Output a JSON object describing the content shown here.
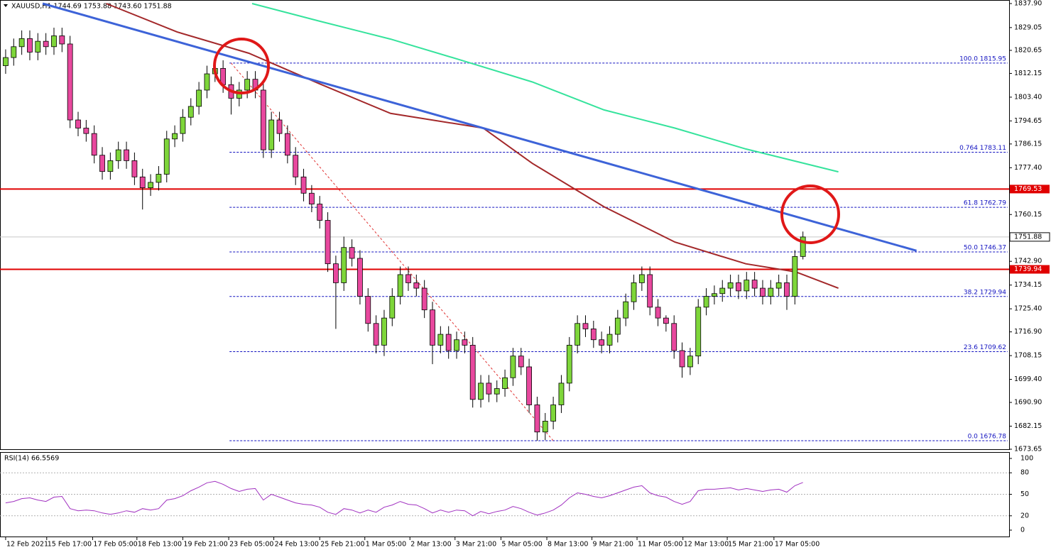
{
  "chart_data": {
    "type": "candlestick",
    "title": "XAUUSD,H1  1744.69 1753.88 1743.60 1751.88",
    "up_color": "#7ed63a",
    "down_color": "#e8489e",
    "open": [
      1815,
      1818,
      1822,
      1825,
      1820,
      1824,
      1822,
      1826,
      1823,
      1795,
      1792,
      1790,
      1782,
      1776,
      1780,
      1784,
      1780,
      1774,
      1770,
      1772,
      1775,
      1788,
      1790,
      1796,
      1800,
      1806,
      1812,
      1814,
      1808,
      1803,
      1806,
      1810,
      1806,
      1784,
      1795,
      1790,
      1782,
      1774,
      1768,
      1764,
      1758,
      1742,
      1735,
      1748,
      1744,
      1730,
      1720,
      1712,
      1722,
      1730,
      1738,
      1735,
      1733,
      1725,
      1712,
      1716,
      1710,
      1714,
      1712,
      1692,
      1698,
      1694,
      1696,
      1700,
      1708,
      1704,
      1690,
      1680,
      1684,
      1690,
      1698,
      1712,
      1720,
      1718,
      1714,
      1712,
      1716,
      1722,
      1728,
      1735,
      1738,
      1726,
      1722,
      1720,
      1710,
      1704,
      1708,
      1726,
      1730,
      1731,
      1733,
      1735,
      1732,
      1736,
      1733,
      1730,
      1733,
      1735,
      1730,
      1744.69
    ],
    "high": [
      1821,
      1825,
      1828,
      1828,
      1827,
      1827,
      1829,
      1829,
      1826,
      1798,
      1795,
      1793,
      1785,
      1783,
      1787,
      1787,
      1783,
      1777,
      1775,
      1778,
      1791,
      1793,
      1799,
      1803,
      1809,
      1815,
      1817,
      1817,
      1811,
      1809,
      1813,
      1813,
      1809,
      1798,
      1798,
      1793,
      1785,
      1777,
      1771,
      1767,
      1761,
      1745,
      1752,
      1751,
      1747,
      1733,
      1723,
      1725,
      1733,
      1741,
      1741,
      1738,
      1736,
      1728,
      1719,
      1719,
      1717,
      1717,
      1715,
      1701,
      1701,
      1699,
      1703,
      1711,
      1711,
      1707,
      1693,
      1687,
      1693,
      1701,
      1715,
      1723,
      1723,
      1721,
      1717,
      1719,
      1725,
      1731,
      1738,
      1741,
      1741,
      1729,
      1723,
      1723,
      1713,
      1711,
      1729,
      1733,
      1734,
      1736,
      1738,
      1738,
      1739,
      1739,
      1736,
      1736,
      1738,
      1738,
      1747,
      1753.88
    ],
    "low": [
      1812,
      1815,
      1819,
      1817,
      1817,
      1819,
      1819,
      1820,
      1792,
      1789,
      1787,
      1779,
      1773,
      1773,
      1777,
      1777,
      1771,
      1762,
      1767,
      1769,
      1772,
      1785,
      1787,
      1793,
      1797,
      1803,
      1809,
      1805,
      1797,
      1800,
      1803,
      1803,
      1781,
      1781,
      1787,
      1779,
      1771,
      1765,
      1761,
      1755,
      1739,
      1718,
      1732,
      1741,
      1727,
      1717,
      1709,
      1708,
      1719,
      1727,
      1732,
      1730,
      1722,
      1705,
      1709,
      1707,
      1707,
      1709,
      1689,
      1689,
      1691,
      1691,
      1693,
      1697,
      1701,
      1687,
      1676.78,
      1677,
      1681,
      1687,
      1695,
      1709,
      1715,
      1711,
      1709,
      1709,
      1713,
      1719,
      1725,
      1732,
      1723,
      1719,
      1717,
      1707,
      1700,
      1701,
      1705,
      1723,
      1727,
      1728,
      1730,
      1729,
      1729,
      1730,
      1727,
      1727,
      1730,
      1725,
      1727,
      1743.6
    ],
    "close": [
      1818,
      1822,
      1825,
      1820,
      1824,
      1822,
      1826,
      1823,
      1795,
      1792,
      1790,
      1782,
      1776,
      1780,
      1784,
      1780,
      1774,
      1770,
      1772,
      1775,
      1788,
      1790,
      1796,
      1800,
      1806,
      1812,
      1814,
      1808,
      1803,
      1806,
      1810,
      1806,
      1784,
      1795,
      1790,
      1782,
      1774,
      1768,
      1764,
      1758,
      1742,
      1735,
      1748,
      1744,
      1730,
      1720,
      1712,
      1722,
      1730,
      1738,
      1735,
      1733,
      1725,
      1712,
      1716,
      1710,
      1714,
      1712,
      1692,
      1698,
      1694,
      1696,
      1700,
      1708,
      1704,
      1690,
      1680,
      1684,
      1690,
      1698,
      1712,
      1720,
      1718,
      1714,
      1712,
      1716,
      1722,
      1728,
      1735,
      1738,
      1726,
      1722,
      1720,
      1710,
      1704,
      1708,
      1726,
      1730,
      1731,
      1733,
      1735,
      1732,
      1736,
      1733,
      1730,
      1733,
      1735,
      1730,
      1744.69,
      1751.88
    ],
    "xlim": [
      -0.7,
      124.6
    ],
    "ylim": [
      1673.65,
      1837.9
    ],
    "yticks": [
      {
        "value": 1837.9,
        "label": "1837.90"
      },
      1829.05,
      1820.65,
      1812.15,
      {
        "value": 1803.4,
        "label": "1803.40"
      },
      1794.65,
      1786.15,
      {
        "value": 1777.4,
        "label": "1777.40"
      },
      1760.15,
      {
        "value": 1742.9,
        "label": "1742.90"
      },
      1734.15,
      {
        "value": 1725.4,
        "label": "1725.40"
      },
      {
        "value": 1716.9,
        "label": "1716.90"
      },
      1708.15,
      {
        "value": 1699.4,
        "label": "1699.40"
      },
      {
        "value": 1690.9,
        "label": "1690.90"
      },
      1682.15,
      1673.65
    ],
    "xticks": [
      {
        "value": 0,
        "label": "12 Feb 2021"
      },
      {
        "value": 5.1,
        "label": "15 Feb 17:00"
      },
      {
        "value": 10.8,
        "label": "17 Feb 05:00"
      },
      {
        "value": 16.3,
        "label": "18 Feb 13:00"
      },
      {
        "value": 22,
        "label": "19 Feb 21:00"
      },
      {
        "value": 27.7,
        "label": "23 Feb 05:00"
      },
      {
        "value": 33.3,
        "label": "24 Feb 13:00"
      },
      {
        "value": 39,
        "label": "25 Feb 21:00"
      },
      {
        "value": 44.6,
        "label": "1 Mar 05:00"
      },
      {
        "value": 50.2,
        "label": "2 Mar 13:00"
      },
      {
        "value": 55.8,
        "label": "3 Mar 21:00"
      },
      {
        "value": 61.5,
        "label": "5 Mar 05:00"
      },
      {
        "value": 67.2,
        "label": "8 Mar 13:00"
      },
      {
        "value": 72.8,
        "label": "9 Mar 21:00"
      },
      {
        "value": 78.4,
        "label": "11 Mar 05:00"
      },
      {
        "value": 84.1,
        "label": "12 Mar 13:00"
      },
      {
        "value": 89.6,
        "label": "15 Mar 21:00"
      },
      {
        "value": 95.4,
        "label": "17 Mar 05:00"
      }
    ],
    "lines": [
      {
        "color": "#a3282a",
        "width": 2,
        "x": [
          12.5,
          21.3,
          30.2,
          39,
          47.8,
          59.3,
          65.4,
          74.3,
          83.1,
          91.9,
          98.1,
          103.4
        ],
        "values": [
          1837.9,
          1827.4,
          1819.6,
          1808.3,
          1797.4,
          1792,
          1779,
          1763,
          1750,
          1742,
          1739,
          1733
        ]
      },
      {
        "color": "#35e39c",
        "width": 2,
        "x": [
          30.6,
          39,
          47.8,
          56.6,
          65.4,
          74.3,
          83.1,
          91.9,
          103.4
        ],
        "values": [
          1837.9,
          1831.4,
          1824.8,
          1817,
          1809,
          1798.7,
          1792,
          1784.3,
          1775.9
        ]
      },
      {
        "color": "#3d63d8",
        "width": 3,
        "x": [
          4.6,
          113.1
        ],
        "values": [
          1837.9,
          1746.8
        ]
      }
    ],
    "fib_anchor": {
      "color": "#e03030",
      "x": [
        28,
        68
      ],
      "values": [
        1815.95,
        1676.78
      ]
    },
    "fib_start": 27.8,
    "fib_color": "#1010c0",
    "fib_levels": [
      {
        "value": 1815.95,
        "label": "100.0 1815.95"
      },
      {
        "value": 1783.11,
        "label": "0.764 1783.11"
      },
      {
        "value": 1762.79,
        "label": "61.8 1762.79"
      },
      {
        "value": 1746.37,
        "label": "50.0 1746.37"
      },
      {
        "value": 1729.94,
        "label": "38.2 1729.94"
      },
      {
        "value": 1709.62,
        "label": "23.6 1709.62"
      },
      {
        "value": 1676.78,
        "label": "0.0 1676.78"
      }
    ],
    "levels": [
      1769.53,
      1739.94
    ],
    "level_color": "#e00000",
    "rsi": {
      "title": "RSI(14) 66.5569",
      "color": "#a030c0",
      "ylim": [
        0,
        100
      ],
      "yticks": [
        100,
        80,
        50,
        20,
        0
      ],
      "values": [
        38,
        40,
        44,
        45,
        42,
        40,
        46,
        47,
        30,
        27,
        28,
        27,
        24,
        22,
        24,
        27,
        25,
        30,
        28,
        30,
        42,
        44,
        48,
        55,
        60,
        66,
        68,
        64,
        58,
        54,
        57,
        58,
        42,
        50,
        46,
        42,
        38,
        36,
        35,
        32,
        25,
        22,
        30,
        28,
        24,
        28,
        25,
        32,
        35,
        40,
        36,
        35,
        30,
        24,
        28,
        25,
        28,
        27,
        20,
        26,
        23,
        26,
        28,
        33,
        30,
        25,
        21,
        24,
        28,
        35,
        45,
        52,
        50,
        47,
        45,
        48,
        52,
        56,
        60,
        62,
        52,
        48,
        46,
        40,
        36,
        40,
        55,
        57,
        57,
        58,
        59,
        56,
        58,
        56,
        54,
        56,
        57,
        53,
        62,
        66.5569
      ]
    }
  }
}
